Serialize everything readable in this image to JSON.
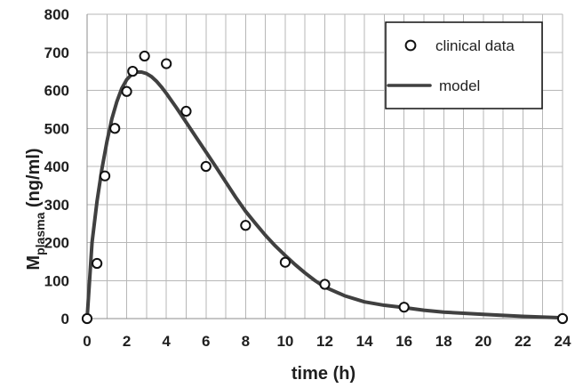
{
  "chart_data": {
    "type": "scatter",
    "title": "",
    "xlabel": "time (h)",
    "ylabel": {
      "main": "M",
      "subscript": "plasma",
      "units": " (ng/ml)"
    },
    "xlim": [
      0,
      24
    ],
    "ylim": [
      0,
      800
    ],
    "x_ticks": [
      0,
      2,
      4,
      6,
      8,
      10,
      12,
      14,
      16,
      18,
      20,
      22,
      24
    ],
    "y_ticks": [
      0,
      100,
      200,
      300,
      400,
      500,
      600,
      700,
      800
    ],
    "grid": true,
    "legend": {
      "placement": "top-right",
      "entries": [
        {
          "label": "clinical data",
          "marker": "circle"
        },
        {
          "label": "model",
          "marker": "line"
        }
      ]
    },
    "series": [
      {
        "name": "clinical data",
        "kind": "scatter",
        "x": [
          0,
          0.5,
          0.9,
          1.4,
          2.0,
          2.3,
          2.9,
          4.0,
          5.0,
          6.0,
          8.0,
          10.0,
          12.0,
          16.0,
          24.0
        ],
        "y": [
          0,
          145,
          375,
          500,
          597,
          650,
          690,
          670,
          545,
          400,
          245,
          148,
          90,
          30,
          0
        ]
      },
      {
        "name": "model",
        "kind": "line",
        "x": [
          0,
          0.25,
          0.5,
          0.75,
          1.0,
          1.25,
          1.5,
          1.75,
          2.0,
          2.25,
          2.5,
          2.75,
          3.0,
          3.25,
          3.5,
          3.75,
          4.0,
          4.5,
          5.0,
          5.5,
          6.0,
          6.5,
          7.0,
          7.5,
          8.0,
          8.5,
          9.0,
          9.5,
          10.0,
          10.5,
          11.0,
          11.5,
          12.0,
          13.0,
          14.0,
          15.0,
          16.0,
          17.0,
          18.0,
          20.0,
          22.0,
          24.0
        ],
        "y": [
          0,
          200,
          308,
          394,
          465,
          525,
          570,
          605,
          628,
          642,
          648,
          648,
          644,
          636,
          624,
          609,
          592,
          555,
          516,
          477,
          438,
          399,
          359,
          319,
          282,
          250,
          219,
          191,
          166,
          142,
          120,
          100,
          83,
          60,
          44,
          35,
          29,
          22,
          17,
          11,
          6,
          2
        ]
      }
    ],
    "colors": {
      "marker_stroke": "#111111",
      "marker_fill": "#ffffff",
      "line": "#404040",
      "grid": "#b7b7b7",
      "axis": "#8d8d8d",
      "text": "#1f1f1f"
    }
  }
}
